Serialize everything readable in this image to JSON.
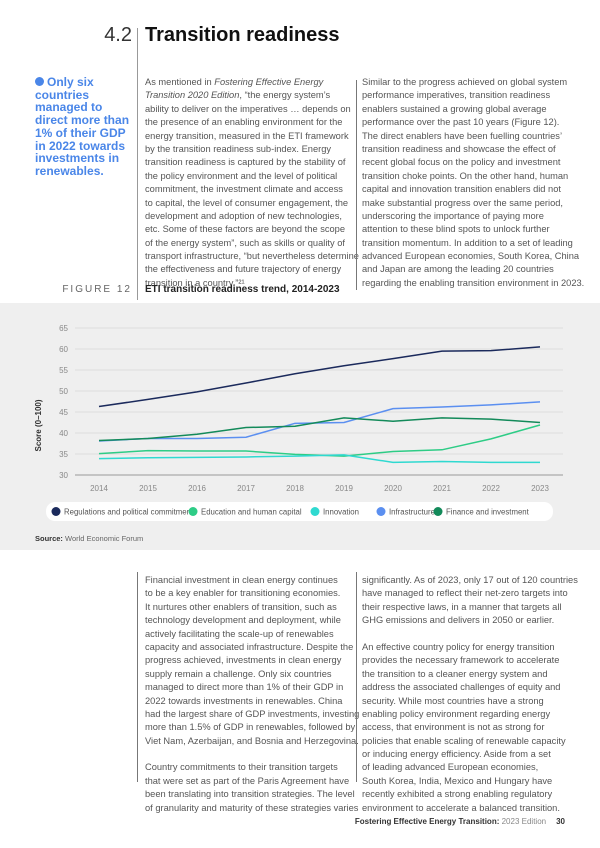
{
  "section": {
    "number": "4.2",
    "title": "Transition readiness"
  },
  "callout": {
    "icon": "info-dot-icon",
    "text": "Only six countries managed to direct more than 1% of their GDP in 2022 towards investments in renewables."
  },
  "top_col1": [
    "As mentioned in |Fostering Effective Energy",
    "|Transition 2020 Edition|, “the energy system’s",
    "ability to deliver on the imperatives … depends on",
    "the presence of an enabling environment for the",
    "energy transition, measured in the ETI framework",
    "by the transition readiness sub-index. Energy",
    "transition readiness is captured by the stability of",
    "the policy environment and the level of political",
    "commitment, the investment climate and access",
    "to capital, the level of consumer engagement, the",
    "development and adoption of new technologies,",
    "etc. Some of these factors are beyond the scope",
    "of the energy system”, such as skills or quality of",
    "transport infrastructure, “but nevertheless determine",
    "the effectiveness and future trajectory of energy",
    "transition in a country.”²¹"
  ],
  "top_col2": [
    "Similar to the progress achieved on global system",
    "performance imperatives, transition readiness",
    "enablers sustained a growing global average",
    "performance over the past 10 years (Figure 12).",
    "The direct enablers have been fuelling countries’",
    "transition readiness and showcase the effect of",
    "recent global focus on the policy and investment",
    "transition choke points. On the other hand, human",
    "capital and innovation transition enablers did not",
    "make substantial progress over the same period,",
    "underscoring the importance of paying more",
    "attention to these blind spots to unlock further",
    "transition momentum. In addition to a set of leading",
    "advanced European economies, South Korea, China",
    "and Japan are among the leading 20 countries",
    "regarding the enabling transition environment in 2023."
  ],
  "figure": {
    "label": "FIGURE 12",
    "title": "ETI transition readiness trend, 2014-2023",
    "source_label": "Source:",
    "source": "World Economic Forum"
  },
  "chart_data": {
    "type": "line",
    "title": "ETI transition readiness trend, 2014-2023",
    "xlabel": "",
    "ylabel": "Score (0–100)",
    "ylim": [
      30,
      65
    ],
    "yticks": [
      30,
      35,
      40,
      45,
      50,
      55,
      60,
      65
    ],
    "x": [
      2014,
      2015,
      2016,
      2017,
      2018,
      2019,
      2020,
      2021,
      2022,
      2023
    ],
    "grid": true,
    "legend": "bottom",
    "series": [
      {
        "name": "Regulations and political commitment",
        "color": "#1b2a5c",
        "values": [
          46.3,
          48.0,
          49.8,
          51.9,
          54.1,
          56.0,
          57.7,
          59.5,
          59.6,
          60.5
        ]
      },
      {
        "name": "Education and human capital",
        "color": "#2ecc86",
        "values": [
          35.1,
          35.8,
          35.7,
          35.7,
          34.9,
          34.5,
          35.6,
          36.0,
          38.6,
          41.9
        ]
      },
      {
        "name": "Innovation",
        "color": "#2fd9d0",
        "values": [
          33.9,
          34.1,
          34.2,
          34.3,
          34.5,
          34.8,
          33.0,
          33.2,
          33.0,
          33.0
        ]
      },
      {
        "name": "Infrastructure",
        "color": "#5b8ff0",
        "values": [
          38.1,
          38.7,
          38.7,
          39.0,
          42.3,
          42.5,
          45.8,
          46.2,
          46.7,
          47.4
        ]
      },
      {
        "name": "Finance and investment",
        "color": "#138a5a",
        "values": [
          38.2,
          38.7,
          39.7,
          41.3,
          41.6,
          43.6,
          42.8,
          43.6,
          43.3,
          42.5
        ]
      }
    ]
  },
  "bottom_col1": [
    "Financial investment in clean energy continues",
    "to be a key enabler for transitioning economies.",
    "It nurtures other enablers of transition, such as",
    "technology development and deployment, while",
    "actively facilitating the scale-up of renewables",
    "capacity and associated infrastructure. Despite the",
    "progress achieved, investments in clean energy",
    "supply remain a challenge. Only six countries",
    "managed to direct more than 1% of their GDP in",
    "2022 towards investments in renewables. China",
    "had the largest share of GDP investments, investing",
    "more than 1.5% of GDP in renewables, followed by",
    "Viet Nam, Azerbaijan, and Bosnia and Herzegovina.",
    "",
    "Country commitments to their transition targets",
    "that were set as part of the Paris Agreement have",
    "been translating into transition strategies. The level",
    "of granularity and maturity of these strategies varies"
  ],
  "bottom_col2": [
    "significantly. As of 2023, only 17 out of 120 countries",
    "have managed to reflect their net-zero targets into",
    "their respective laws, in a manner that targets all",
    "GHG emissions and delivers in 2050 or earlier.",
    "",
    "An effective country policy for energy transition",
    "provides the necessary framework to accelerate",
    "the transition to a cleaner energy system and",
    "address the associated challenges of equity and",
    "security. While most countries have a strong",
    "enabling policy environment regarding energy",
    "access, that environment is not as strong for",
    "policies that enable scaling of renewable capacity",
    "or inducing energy efficiency. Aside from a set",
    "of leading advanced European economies,",
    "South Korea, India, Mexico and Hungary have",
    "recently exhibited a strong enabling regulatory",
    "environment to accelerate a balanced transition."
  ],
  "footer": {
    "title": "Fostering Effective Energy Transition:",
    "edition": "2023 Edition",
    "page": "30"
  }
}
